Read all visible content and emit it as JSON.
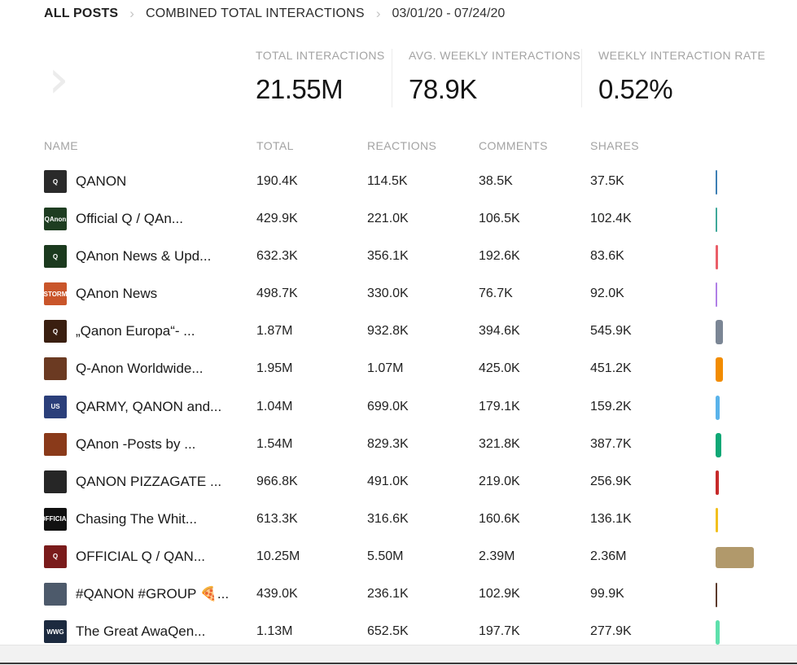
{
  "breadcrumb": {
    "root": "ALL POSTS",
    "current": "COMBINED TOTAL INTERACTIONS",
    "date_range": "03/01/20 - 07/24/20"
  },
  "metrics": [
    {
      "label": "TOTAL INTERACTIONS",
      "value": "21.55M"
    },
    {
      "label": "AVG. WEEKLY INTERACTIONS",
      "value": "78.9K"
    },
    {
      "label": "WEEKLY INTERACTION RATE",
      "value": "0.52%"
    }
  ],
  "table": {
    "columns": [
      "NAME",
      "TOTAL",
      "REACTIONS",
      "COMMENTS",
      "SHARES"
    ],
    "rows": [
      {
        "name": "QANON",
        "total": "190.4K",
        "reactions": "114.5K",
        "comments": "38.5K",
        "shares": "37.5K",
        "color": "#3d7fb4",
        "thumb_color": "#2a2a2a",
        "thumb_text": "Q"
      },
      {
        "name": "Official Q / QAn...",
        "total": "429.9K",
        "reactions": "221.0K",
        "comments": "106.5K",
        "shares": "102.4K",
        "color": "#3fa89a",
        "thumb_color": "#1e3d21",
        "thumb_text": "QAnon"
      },
      {
        "name": "QAnon News & Upd...",
        "total": "632.3K",
        "reactions": "356.1K",
        "comments": "192.6K",
        "shares": "83.6K",
        "color": "#ea5e68",
        "thumb_color": "#1b3a1e",
        "thumb_text": "Q"
      },
      {
        "name": "QAnon News",
        "total": "498.7K",
        "reactions": "330.0K",
        "comments": "76.7K",
        "shares": "92.0K",
        "color": "#b07fe6",
        "thumb_color": "#c9552a",
        "thumb_text": "STORM"
      },
      {
        "name": "„Qanon Europa“- ...",
        "total": "1.87M",
        "reactions": "932.8K",
        "comments": "394.6K",
        "shares": "545.9K",
        "color": "#7b8695",
        "thumb_color": "#3a1f10",
        "thumb_text": "Q"
      },
      {
        "name": "Q-Anon Worldwide...",
        "total": "1.95M",
        "reactions": "1.07M",
        "comments": "425.0K",
        "shares": "451.2K",
        "color": "#f28c00",
        "thumb_color": "#6b3a22",
        "thumb_text": ""
      },
      {
        "name": "QARMY, QANON and...",
        "total": "1.04M",
        "reactions": "699.0K",
        "comments": "179.1K",
        "shares": "159.2K",
        "color": "#5ab3ea",
        "thumb_color": "#2b3f7a",
        "thumb_text": "US"
      },
      {
        "name": "QAnon -Posts by ...",
        "total": "1.54M",
        "reactions": "829.3K",
        "comments": "321.8K",
        "shares": "387.7K",
        "color": "#0ea876",
        "thumb_color": "#8a3a1a",
        "thumb_text": ""
      },
      {
        "name": "QANON PIZZAGATE ...",
        "total": "966.8K",
        "reactions": "491.0K",
        "comments": "219.0K",
        "shares": "256.9K",
        "color": "#c62a2a",
        "thumb_color": "#262626",
        "thumb_text": ""
      },
      {
        "name": "Chasing The Whit...",
        "total": "613.3K",
        "reactions": "316.6K",
        "comments": "160.6K",
        "shares": "136.1K",
        "color": "#f2c01e",
        "thumb_color": "#111111",
        "thumb_text": "OFFICIAL"
      },
      {
        "name": "OFFICIAL Q / QAN...",
        "total": "10.25M",
        "reactions": "5.50M",
        "comments": "2.39M",
        "shares": "2.36M",
        "color": "#b1996b",
        "thumb_color": "#7a1b1b",
        "thumb_text": "Q"
      },
      {
        "name": "#QANON #GROUP 🍕...",
        "total": "439.0K",
        "reactions": "236.1K",
        "comments": "102.9K",
        "shares": "99.9K",
        "color": "#5c3a2c",
        "thumb_color": "#4d5a6b",
        "thumb_text": ""
      },
      {
        "name": "The Great AwaQen...",
        "total": "1.13M",
        "reactions": "652.5K",
        "comments": "197.7K",
        "shares": "277.9K",
        "color": "#5ee0ac",
        "thumb_color": "#1c2a3f",
        "thumb_text": "WWG"
      }
    ]
  },
  "icons": {
    "next": "chevron-right-icon",
    "separator": "chevron-right-icon"
  }
}
